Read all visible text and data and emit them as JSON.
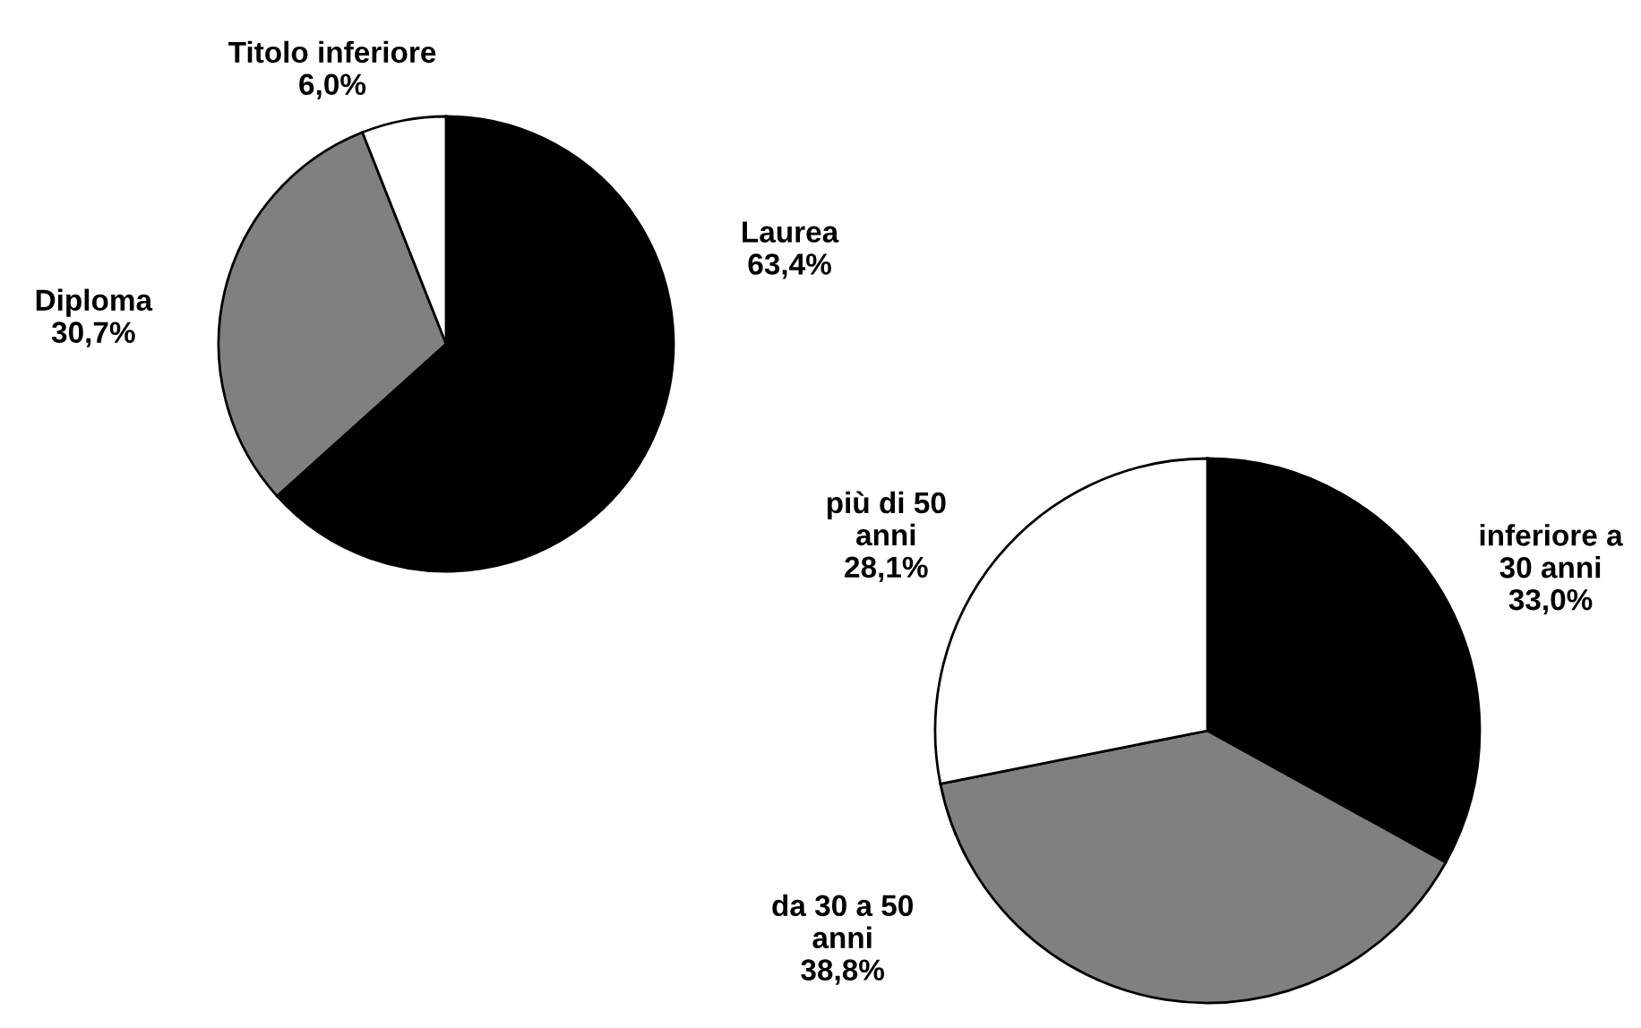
{
  "chart_data": [
    {
      "type": "pie",
      "categories": [
        "Laurea",
        "Diploma",
        "Titolo inferiore"
      ],
      "values": [
        63.4,
        30.7,
        6.0
      ],
      "colors": [
        "#000000",
        "#808080",
        "#ffffff"
      ],
      "value_labels": [
        "63,4%",
        "30,7%",
        "6,0%"
      ]
    },
    {
      "type": "pie",
      "categories": [
        "inferiore a 30 anni",
        "da 30 a 50 anni",
        "più di 50 anni"
      ],
      "values": [
        33.0,
        38.8,
        28.1
      ],
      "colors": [
        "#000000",
        "#808080",
        "#ffffff"
      ],
      "value_labels": [
        "33,0%",
        "38,8%",
        "28,1%"
      ]
    }
  ]
}
